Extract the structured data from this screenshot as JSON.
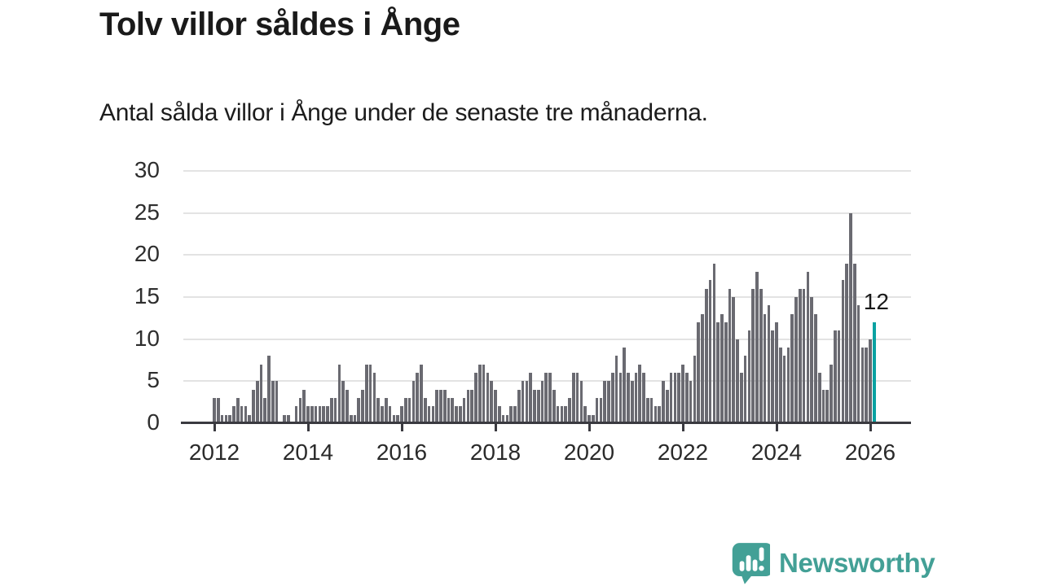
{
  "header": {
    "title": "Tolv villor såldes i Ånge",
    "subtitle": "Antal sålda villor i Ånge under de senaste tre månaderna."
  },
  "chart_data": {
    "type": "bar",
    "title": "Tolv villor såldes i Ånge",
    "xlabel": "",
    "ylabel": "",
    "frequency": "monthly",
    "x_start": "2012-01",
    "x_end": "2026-02",
    "values": [
      3,
      3,
      1,
      1,
      1,
      2,
      3,
      2,
      2,
      1,
      4,
      5,
      7,
      3,
      8,
      5,
      5,
      0,
      1,
      1,
      0,
      2,
      3,
      4,
      2,
      2,
      2,
      2,
      2,
      2,
      3,
      3,
      7,
      5,
      4,
      1,
      1,
      3,
      4,
      7,
      7,
      6,
      3,
      2,
      3,
      2,
      1,
      1,
      2,
      3,
      3,
      5,
      6,
      7,
      3,
      2,
      2,
      4,
      4,
      4,
      3,
      3,
      2,
      2,
      3,
      4,
      4,
      6,
      7,
      7,
      6,
      5,
      4,
      2,
      1,
      1,
      2,
      2,
      4,
      5,
      5,
      6,
      4,
      4,
      5,
      6,
      6,
      4,
      2,
      2,
      2,
      3,
      6,
      6,
      5,
      2,
      1,
      1,
      3,
      3,
      5,
      5,
      6,
      8,
      6,
      9,
      6,
      5,
      6,
      7,
      6,
      3,
      3,
      2,
      2,
      5,
      4,
      6,
      6,
      6,
      7,
      6,
      5,
      8,
      12,
      13,
      16,
      17,
      19,
      12,
      13,
      12,
      16,
      15,
      10,
      6,
      8,
      11,
      16,
      18,
      16,
      13,
      14,
      11,
      12,
      9,
      8,
      9,
      13,
      15,
      16,
      16,
      18,
      15,
      13,
      6,
      4,
      4,
      7,
      11,
      11,
      17,
      19,
      25,
      19,
      14,
      9,
      9,
      10,
      12
    ],
    "highlight_index": 169,
    "highlight_value": 12,
    "highlight_label": "12",
    "x_tick_labels": [
      "2012",
      "2014",
      "2016",
      "2018",
      "2020",
      "2022",
      "2024",
      "2026"
    ],
    "y_ticks": [
      0,
      5,
      10,
      15,
      20,
      25,
      30
    ],
    "ylim": [
      0,
      30
    ],
    "grid": "horizontal",
    "legend": "none"
  },
  "annotation": {
    "label": "12"
  },
  "colors": {
    "bar": "#6a6a71",
    "highlight": "#0aa2a2",
    "grid": "#e3e3e3",
    "axis": "#3a3a40",
    "title_text": "#1a1a1a",
    "brand": "#43a096"
  },
  "branding": {
    "name": "Newsworthy",
    "icon": "bar-chart-speech-bubble-icon"
  }
}
